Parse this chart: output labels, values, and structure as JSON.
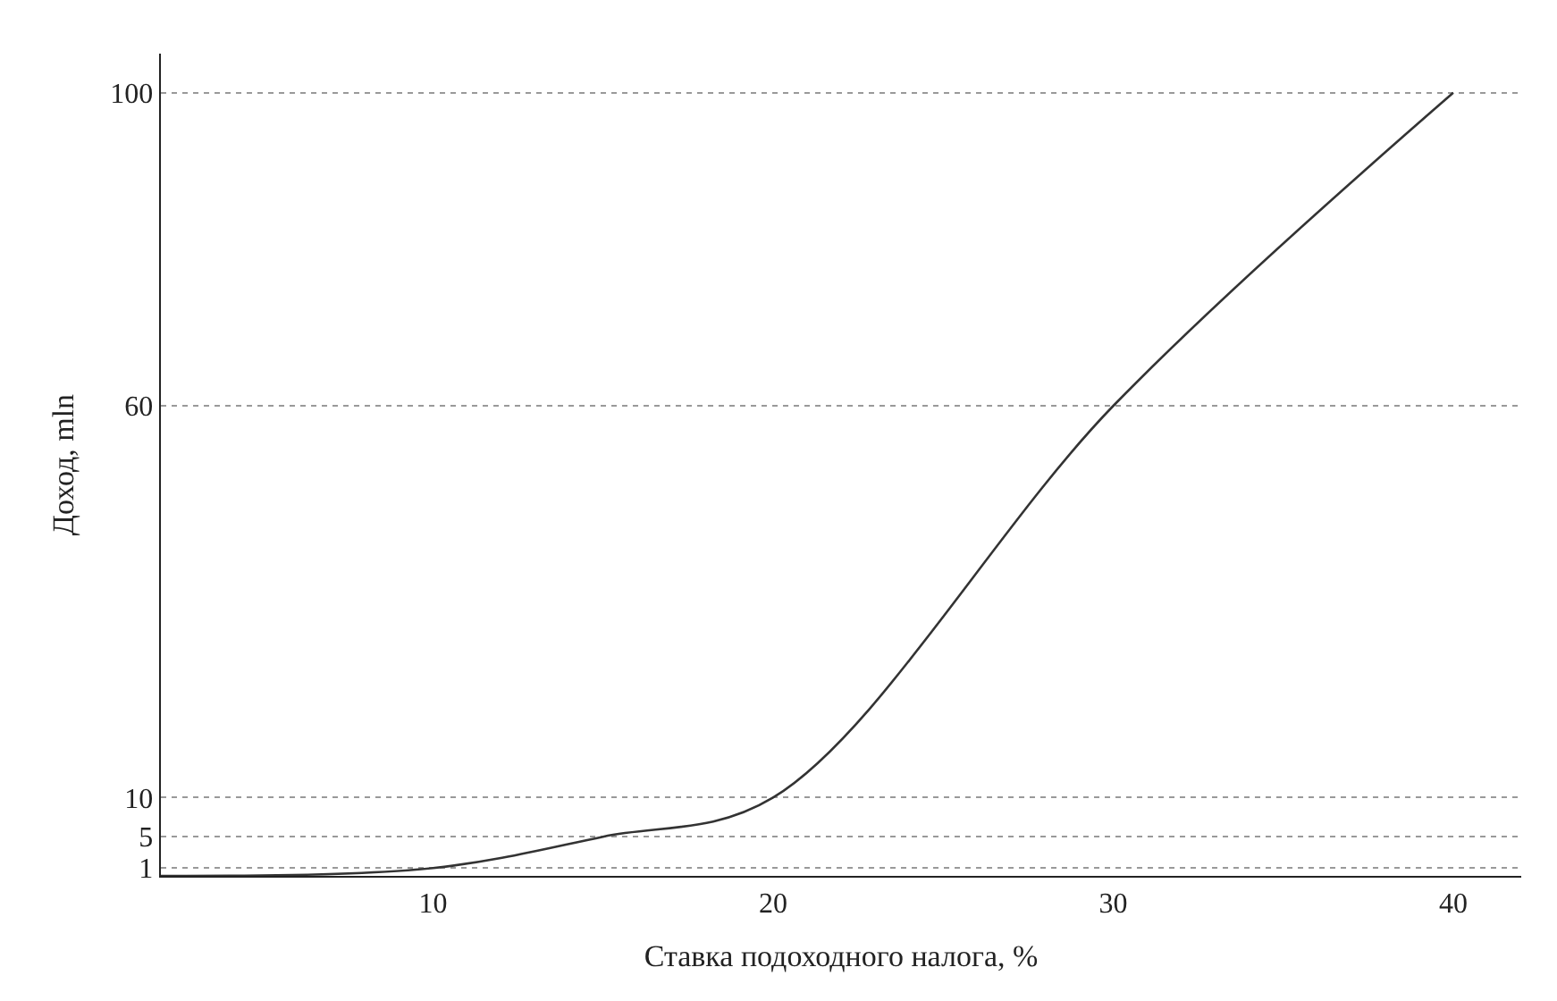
{
  "chart_data": {
    "type": "line",
    "xlabel": "Ставка подоходного налога, %",
    "ylabel": "Доход, mln",
    "x": [
      2,
      10,
      15,
      20,
      30,
      40
    ],
    "series": [
      {
        "color": "#333333",
        "values": [
          0,
          1,
          5,
          10,
          60,
          100
        ]
      }
    ],
    "xlim": [
      2,
      42
    ],
    "xticks": [
      10,
      20,
      30,
      40
    ],
    "ylim": [
      0,
      105
    ],
    "yticks": [
      1,
      5,
      10,
      60,
      100
    ],
    "grid": "y",
    "marker": "none",
    "line_style": "solid"
  }
}
